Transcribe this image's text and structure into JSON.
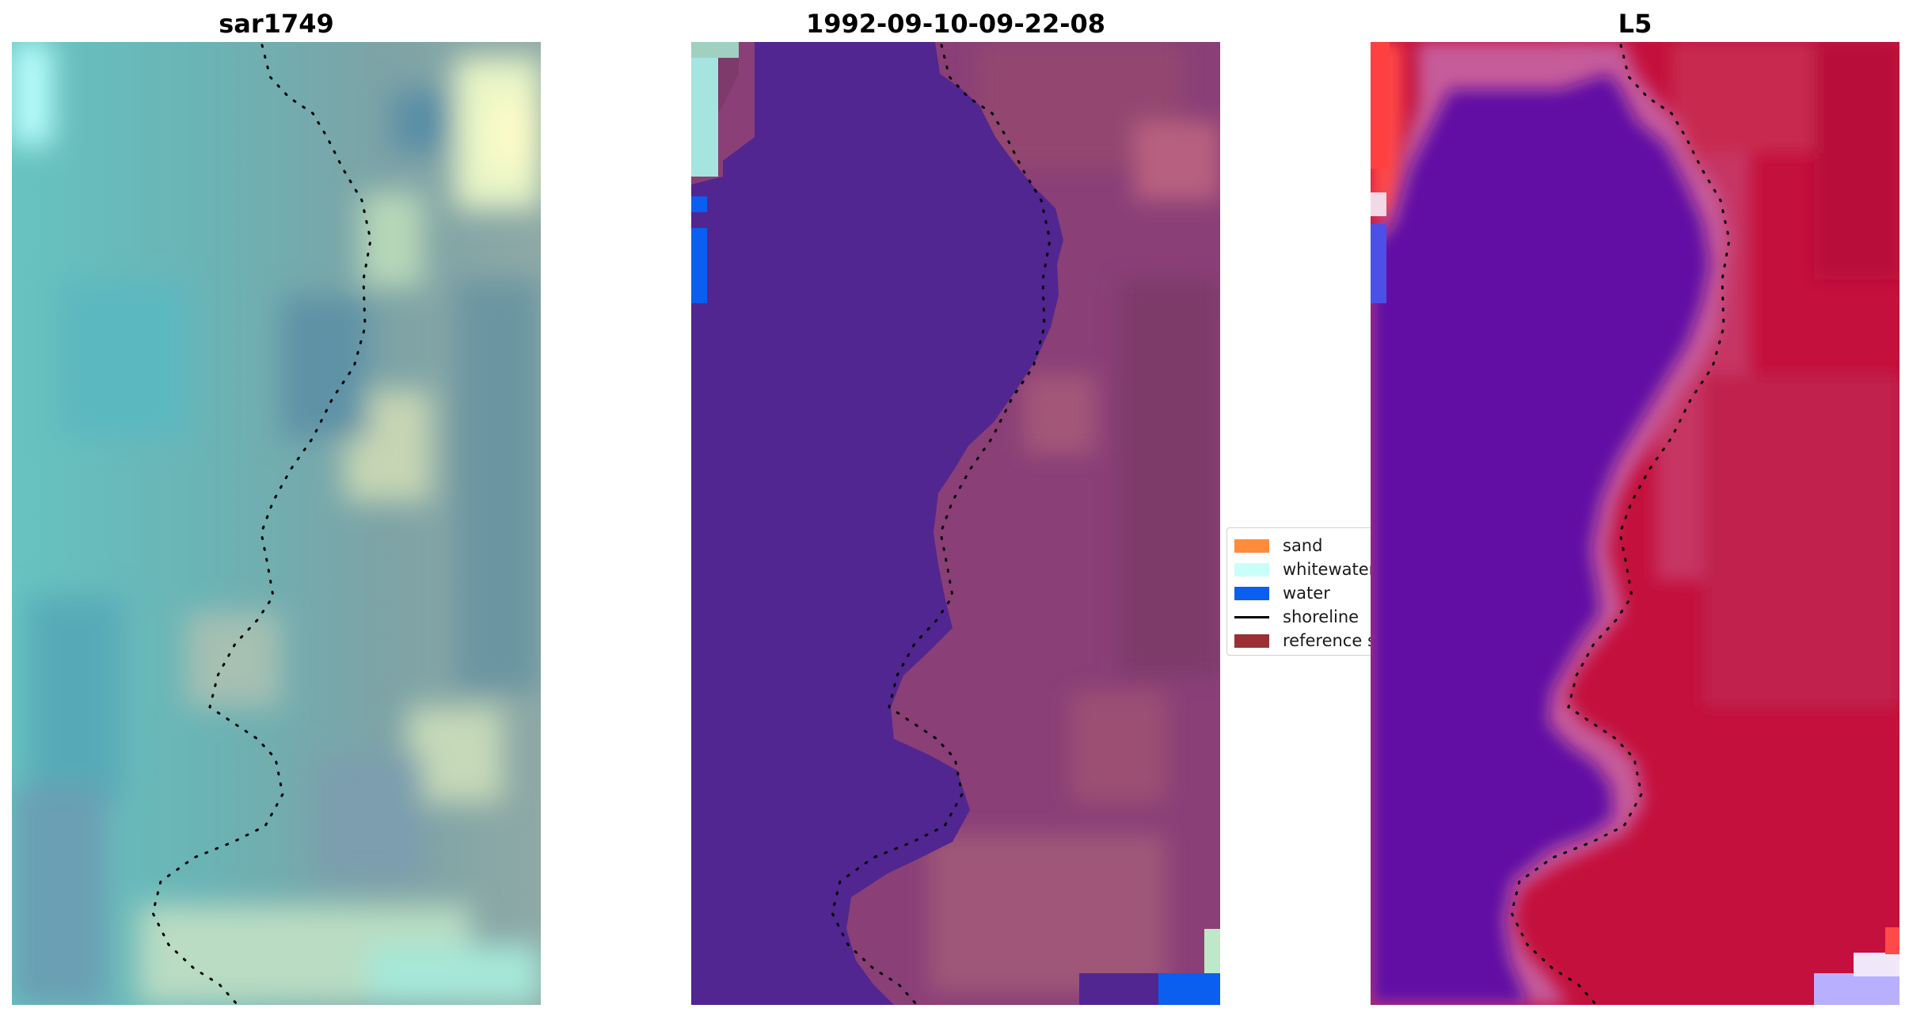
{
  "panels": [
    {
      "title": "sar1749"
    },
    {
      "title": "1992-09-10-09-22-08"
    },
    {
      "title": "L5"
    }
  ],
  "legend": {
    "items": [
      {
        "label": "sand",
        "kind": "patch",
        "color": "#ff8c3a"
      },
      {
        "label": "whitewater",
        "kind": "patch",
        "color": "#c8fff8"
      },
      {
        "label": "water",
        "kind": "patch",
        "color": "#0a5ef0"
      },
      {
        "label": "shoreline",
        "kind": "line",
        "color": "#000000"
      },
      {
        "label": "reference shoreline",
        "kind": "patch",
        "color": "#9b2f34"
      }
    ]
  },
  "colors": {
    "classified_water_class": "#512690",
    "classified_land_tint": "#8e4a7a",
    "sar_base": "#6aaeb0",
    "index_low": "#5a0aa0",
    "index_high": "#c4103c"
  }
}
